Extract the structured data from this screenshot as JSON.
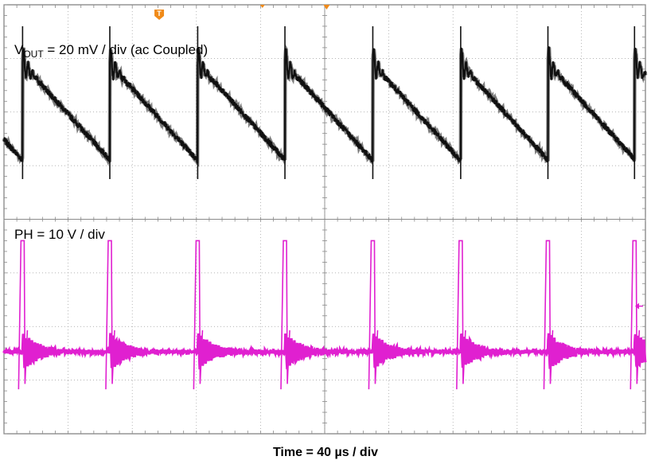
{
  "chart_data": {
    "type": "line",
    "title": "",
    "xlabel": "Time = 40 µs / div",
    "grid": true,
    "divisions": {
      "x": 10,
      "y": 8
    },
    "x_range_div": [
      0,
      10
    ],
    "series": [
      {
        "name": "VOUT",
        "label_main": "V",
        "label_sub": "OUT",
        "label_rest": " = 20 mV / div (ac Coupled)",
        "scale": "20 mV / div",
        "coupling": "ac",
        "color": "#111111",
        "ylim_div": [
          0,
          8
        ],
        "baseline_div": 6.0,
        "period_div": 1.365,
        "first_peak_div": 0.29,
        "peak_div": 6.9,
        "spike_top_div": 7.6,
        "trough_div": 5.1,
        "ringing_div": 0.35,
        "noise_div": 0.05,
        "peaks_x_div": [
          0.29,
          1.65,
          3.02,
          4.38,
          5.75,
          7.12,
          8.48,
          9.83
        ]
      },
      {
        "name": "PH",
        "label": "PH = 10 V / div",
        "scale": "10 V / div",
        "color": "#e020d0",
        "ylim_div": [
          0,
          8
        ],
        "baseline_div": 1.53,
        "pulse_top_div": 3.6,
        "pulse_width_div": 0.05,
        "ringing_amp_div": 0.35,
        "ringing_decay_div": 0.25,
        "pulses_x_div": [
          0.29,
          1.65,
          3.02,
          4.38,
          5.75,
          7.12,
          8.48,
          9.83
        ]
      }
    ],
    "markers": [
      {
        "name": "trigger",
        "symbol": "T",
        "color": "#f08a18"
      },
      {
        "name": "ch2-ref",
        "symbol": "◀",
        "color": "#e020d0"
      }
    ]
  }
}
